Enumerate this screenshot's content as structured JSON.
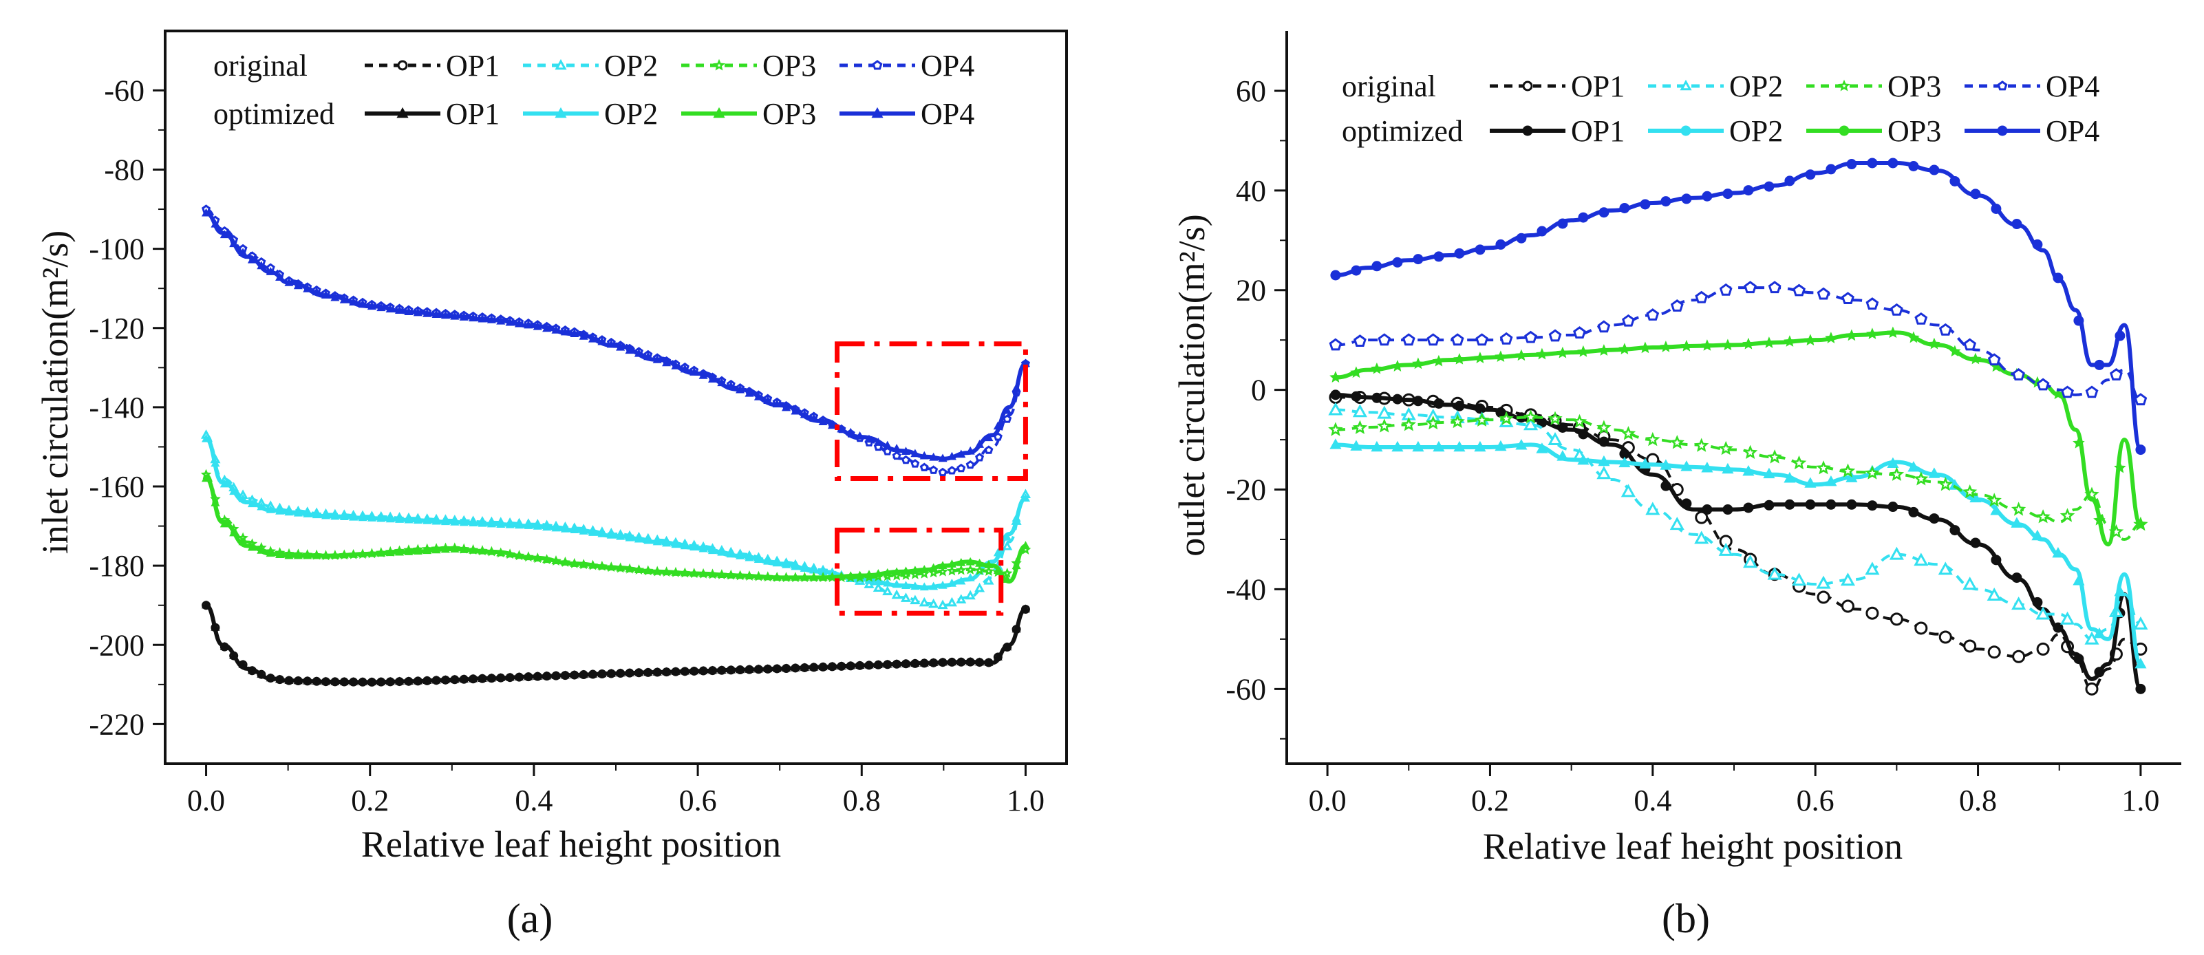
{
  "figure": {
    "panel_a_label": "(a)",
    "panel_b_label": "(b)"
  },
  "chart_data": [
    {
      "type": "line",
      "panel": "(a)",
      "xlabel": "Relative leaf height position",
      "ylabel": "inlet circulation(m²/s)",
      "xlim": [
        -0.05,
        1.05
      ],
      "ylim": [
        -230,
        -45
      ],
      "xticks": [
        "0.0",
        "0.2",
        "0.4",
        "0.6",
        "0.8",
        "1.0"
      ],
      "yticks": [
        "-60",
        "-80",
        "-100",
        "-120",
        "-140",
        "-160",
        "-180",
        "-200",
        "-220"
      ],
      "legend": {
        "row_original": "original",
        "row_optimized": "optimized",
        "entries": [
          "OP1",
          "OP2",
          "OP3",
          "OP4"
        ]
      },
      "colors": {
        "OP1": "#111111",
        "OP2": "#33e0f0",
        "OP3": "#33dd22",
        "OP4": "#1a30d8",
        "box": "#ff0000"
      },
      "highlight_boxes": [
        {
          "x0": 0.77,
          "x1": 1.0,
          "y0": -158,
          "y1": -124
        },
        {
          "x0": 0.77,
          "x1": 0.97,
          "y0": -192,
          "y1": -171
        }
      ],
      "x": [
        0.0,
        0.02,
        0.05,
        0.08,
        0.1,
        0.15,
        0.2,
        0.25,
        0.3,
        0.35,
        0.4,
        0.45,
        0.5,
        0.55,
        0.6,
        0.65,
        0.7,
        0.75,
        0.8,
        0.85,
        0.88,
        0.9,
        0.93,
        0.96,
        0.98,
        1.0
      ],
      "series": [
        {
          "name": "OP1",
          "variant": "original",
          "values": [
            -190,
            -200,
            -206,
            -208.5,
            -209,
            -209.3,
            -209.4,
            -209.2,
            -208.8,
            -208.4,
            -208,
            -207.6,
            -207.2,
            -206.9,
            -206.6,
            -206.3,
            -206,
            -205.6,
            -205.2,
            -204.8,
            -204.6,
            -204.4,
            -204.3,
            -204.5,
            -200,
            -191
          ]
        },
        {
          "name": "OP1",
          "variant": "optimized",
          "values": [
            -190,
            -200,
            -206,
            -208.5,
            -209,
            -209.3,
            -209.4,
            -209.2,
            -208.8,
            -208.4,
            -208,
            -207.6,
            -207.2,
            -206.9,
            -206.6,
            -206.3,
            -206,
            -205.6,
            -205.2,
            -204.8,
            -204.6,
            -204.4,
            -204.3,
            -204.5,
            -200,
            -191
          ]
        },
        {
          "name": "OP2",
          "variant": "original",
          "values": [
            -147,
            -158,
            -163,
            -165,
            -166,
            -167,
            -167.5,
            -168,
            -168.5,
            -169,
            -169.5,
            -170.5,
            -172,
            -173.5,
            -175,
            -177,
            -179,
            -181,
            -184,
            -188,
            -189.5,
            -190,
            -188,
            -183,
            -174,
            -162
          ]
        },
        {
          "name": "OP2",
          "variant": "optimized",
          "values": [
            -148,
            -159,
            -164,
            -166,
            -166.5,
            -167.5,
            -168,
            -168.5,
            -169,
            -169.5,
            -170,
            -171,
            -172.5,
            -174,
            -175.5,
            -177.5,
            -179.5,
            -181.5,
            -183.5,
            -185,
            -185.5,
            -185,
            -183.5,
            -179,
            -172,
            -163
          ]
        },
        {
          "name": "OP3",
          "variant": "original",
          "values": [
            -157,
            -168,
            -174,
            -176.5,
            -177,
            -177.5,
            -177,
            -176,
            -175.5,
            -176.5,
            -178,
            -179.5,
            -180.5,
            -181.5,
            -182,
            -182.5,
            -183,
            -183,
            -183,
            -182.5,
            -182,
            -181.5,
            -181,
            -181.5,
            -182,
            -176
          ]
        },
        {
          "name": "OP3",
          "variant": "optimized",
          "values": [
            -158,
            -169,
            -175,
            -177,
            -177.5,
            -177.5,
            -177,
            -176.5,
            -175.8,
            -176.5,
            -178,
            -179.5,
            -180.5,
            -181.5,
            -182,
            -182.5,
            -183,
            -183,
            -182.5,
            -181.5,
            -181,
            -180,
            -179,
            -180,
            -184,
            -175
          ]
        },
        {
          "name": "OP4",
          "variant": "original",
          "values": [
            -90,
            -95,
            -101,
            -105,
            -108,
            -111.5,
            -114,
            -115.5,
            -116.5,
            -117.5,
            -119,
            -121,
            -124,
            -127.5,
            -131,
            -135,
            -139,
            -143,
            -148,
            -153,
            -155.5,
            -156.5,
            -155,
            -150,
            -142,
            -129
          ]
        },
        {
          "name": "OP4",
          "variant": "optimized",
          "values": [
            -91,
            -96,
            -102,
            -106,
            -108.5,
            -112,
            -114.5,
            -116,
            -117,
            -118,
            -119.5,
            -121.5,
            -124.5,
            -128,
            -131.5,
            -135.5,
            -139.5,
            -143.5,
            -147.5,
            -151,
            -152.5,
            -153,
            -151.5,
            -147,
            -140,
            -129
          ]
        }
      ]
    },
    {
      "type": "line",
      "panel": "(b)",
      "xlabel": "Relative leaf height position",
      "ylabel": "outlet circulation(m²/s)",
      "xlim": [
        -0.05,
        1.05
      ],
      "ylim": [
        -75,
        72
      ],
      "xticks": [
        "0.0",
        "0.2",
        "0.4",
        "0.6",
        "0.8",
        "1.0"
      ],
      "yticks": [
        "60",
        "40",
        "20",
        "0",
        "-20",
        "-40",
        "-60"
      ],
      "legend": {
        "row_original": "original",
        "row_optimized": "optimized",
        "entries": [
          "OP1",
          "OP2",
          "OP3",
          "OP4"
        ]
      },
      "colors": {
        "OP1": "#111111",
        "OP2": "#33e0f0",
        "OP3": "#33dd22",
        "OP4": "#1a30d8"
      },
      "x": [
        0.01,
        0.05,
        0.1,
        0.15,
        0.2,
        0.25,
        0.3,
        0.35,
        0.4,
        0.45,
        0.5,
        0.55,
        0.6,
        0.65,
        0.7,
        0.75,
        0.8,
        0.85,
        0.88,
        0.9,
        0.92,
        0.94,
        0.96,
        0.98,
        1.0
      ],
      "series": [
        {
          "name": "OP1",
          "variant": "original",
          "values": [
            -1.5,
            -1.5,
            -2,
            -2.5,
            -3.5,
            -5,
            -7,
            -10,
            -14,
            -24,
            -32,
            -37,
            -41,
            -44,
            -46,
            -49,
            -52,
            -53.5,
            -52,
            -49,
            -54,
            -60,
            -56,
            -50,
            -52
          ]
        },
        {
          "name": "OP1",
          "variant": "optimized",
          "values": [
            -1,
            -1.5,
            -2,
            -3,
            -4,
            -6,
            -8,
            -11,
            -17,
            -24,
            -24,
            -23,
            -23,
            -23,
            -23.5,
            -26,
            -31,
            -38,
            -44,
            -48,
            -53,
            -58,
            -55,
            -41,
            -60
          ]
        },
        {
          "name": "OP2",
          "variant": "original",
          "values": [
            -4,
            -4.5,
            -5,
            -5.5,
            -6,
            -7,
            -12,
            -18,
            -24,
            -29,
            -33,
            -37,
            -39,
            -38,
            -33,
            -35,
            -40,
            -43,
            -45,
            -45,
            -47,
            -50,
            -48,
            -41,
            -47
          ]
        },
        {
          "name": "OP2",
          "variant": "optimized",
          "values": [
            -11,
            -11.5,
            -11.5,
            -11.5,
            -11.5,
            -11,
            -14,
            -14.5,
            -15,
            -15.5,
            -16,
            -17,
            -19,
            -17.5,
            -14.5,
            -17,
            -22,
            -27,
            -30,
            -33,
            -36,
            -48,
            -50,
            -37,
            -55
          ]
        },
        {
          "name": "OP3",
          "variant": "original",
          "values": [
            -8,
            -7.5,
            -7,
            -6.5,
            -6,
            -5.5,
            -6,
            -8,
            -10,
            -11,
            -12,
            -13.5,
            -15.5,
            -16.5,
            -17,
            -18.5,
            -21,
            -24,
            -25.5,
            -26.5,
            -24,
            -21,
            -27,
            -30,
            -27
          ]
        },
        {
          "name": "OP3",
          "variant": "optimized",
          "values": [
            2.5,
            4,
            5,
            6,
            6.5,
            7,
            7.5,
            8,
            8.5,
            8.8,
            9,
            9.5,
            10,
            11,
            11.5,
            9,
            6,
            3,
            1,
            -1,
            -8,
            -22,
            -31,
            -10,
            -27
          ]
        },
        {
          "name": "OP4",
          "variant": "original",
          "values": [
            9,
            10,
            10,
            10,
            10,
            10.5,
            11,
            13,
            15,
            18,
            20.5,
            20.5,
            19.5,
            18,
            16,
            13,
            8,
            3,
            1,
            0,
            -1,
            -0.5,
            2,
            4,
            -2
          ]
        },
        {
          "name": "OP4",
          "variant": "optimized",
          "values": [
            23,
            24.5,
            26,
            27,
            28.5,
            31,
            34,
            36,
            37.5,
            38.5,
            39.5,
            41,
            43.5,
            45.5,
            45.5,
            44,
            39,
            33,
            28,
            22,
            16,
            5,
            5,
            13,
            -12
          ]
        }
      ]
    }
  ]
}
